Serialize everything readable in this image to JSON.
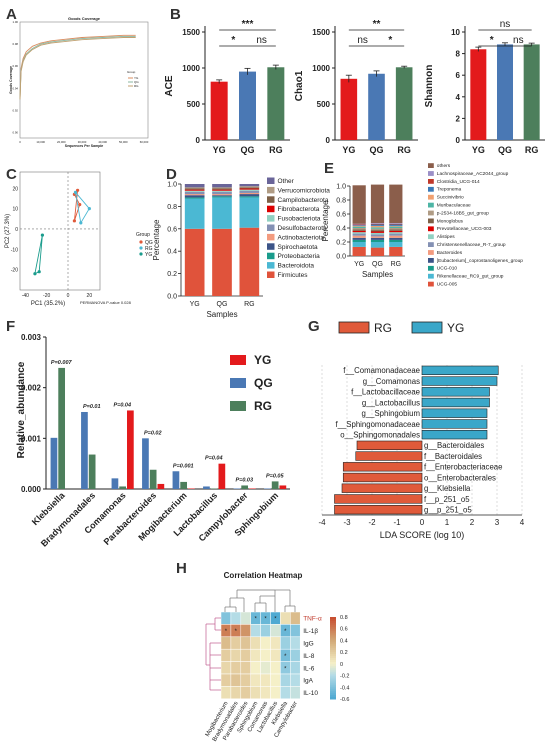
{
  "panels": {
    "A": "A",
    "B": "B",
    "C": "C",
    "D": "D",
    "E": "E",
    "F": "F",
    "G": "G",
    "H": "H"
  },
  "colors": {
    "YG": "#e31a1c",
    "QG": "#4a78b4",
    "RG": "#4d7f5c",
    "RG_lda": "#e05a3a",
    "YG_lda": "#3aa7c9"
  },
  "chart_data": [
    {
      "id": "A",
      "type": "line",
      "title": "Goods Coverage",
      "xlabel": "Sequences Per Sample",
      "ylabel": "Goods Coverage",
      "legend_title": "Group",
      "legend": [
        "YG",
        "QG",
        "RG"
      ],
      "x_ticks": [
        "0",
        "10,000",
        "20,000",
        "30,000",
        "40,000",
        "50,000",
        "60,000"
      ],
      "y_ticks": [
        "0.90",
        "0.92",
        "0.94",
        "0.96",
        "0.98",
        "1.00"
      ],
      "ylim": [
        0.895,
        1.0
      ],
      "series": [
        {
          "name": "YG",
          "x": [
            0,
            500,
            1500,
            3000,
            6000,
            10000,
            15000,
            20000,
            30000,
            40000,
            50000,
            56000
          ],
          "y": [
            0.93,
            0.958,
            0.967,
            0.973,
            0.978,
            0.981,
            0.983,
            0.984,
            0.986,
            0.987,
            0.988,
            0.988
          ]
        },
        {
          "name": "QG",
          "x": [
            0,
            500,
            1500,
            3000,
            6000,
            10000,
            15000,
            20000,
            30000,
            40000,
            50000,
            56000
          ],
          "y": [
            0.93,
            0.956,
            0.965,
            0.971,
            0.976,
            0.98,
            0.982,
            0.983,
            0.985,
            0.986,
            0.987,
            0.987
          ]
        },
        {
          "name": "RG",
          "x": [
            0,
            500,
            1500,
            3000,
            6000,
            10000,
            15000,
            20000,
            30000,
            40000,
            50000,
            56000
          ],
          "y": [
            0.93,
            0.955,
            0.964,
            0.97,
            0.975,
            0.979,
            0.981,
            0.982,
            0.984,
            0.985,
            0.986,
            0.986
          ]
        }
      ]
    },
    {
      "id": "B1",
      "type": "bar",
      "ylabel": "ACE",
      "categories": [
        "YG",
        "QG",
        "RG"
      ],
      "values": [
        810,
        950,
        1010
      ],
      "errors": [
        25,
        45,
        30
      ],
      "ylim": [
        0,
        1500
      ],
      "y_ticks": [
        "0",
        "500",
        "1000",
        "1500"
      ],
      "sig": [
        {
          "from": 0,
          "to": 2,
          "label": "***",
          "level": 1
        },
        {
          "from": 0,
          "to": 1,
          "label": "*",
          "level": 0
        },
        {
          "from": 1,
          "to": 2,
          "label": "ns",
          "level": 0
        }
      ]
    },
    {
      "id": "B2",
      "type": "bar",
      "ylabel": "Chao1",
      "categories": [
        "YG",
        "QG",
        "RG"
      ],
      "values": [
        850,
        920,
        1010
      ],
      "errors": [
        50,
        40,
        15
      ],
      "ylim": [
        0,
        1500
      ],
      "y_ticks": [
        "0",
        "500",
        "1000",
        "1500"
      ],
      "sig": [
        {
          "from": 0,
          "to": 2,
          "label": "**",
          "level": 1
        },
        {
          "from": 0,
          "to": 1,
          "label": "ns",
          "level": 0
        },
        {
          "from": 1,
          "to": 2,
          "label": "*",
          "level": 0
        }
      ]
    },
    {
      "id": "B3",
      "type": "bar",
      "ylabel": "Shannon",
      "categories": [
        "YG",
        "QG",
        "RG"
      ],
      "values": [
        8.4,
        8.85,
        8.85
      ],
      "errors": [
        0.2,
        0.15,
        0.12
      ],
      "ylim": [
        0,
        10
      ],
      "y_ticks": [
        "0",
        "2",
        "4",
        "6",
        "8",
        "10"
      ],
      "sig": [
        {
          "from": 0,
          "to": 2,
          "label": "ns",
          "level": 1
        },
        {
          "from": 0,
          "to": 1,
          "label": "*",
          "level": 0
        },
        {
          "from": 1,
          "to": 2,
          "label": "ns",
          "level": 0
        }
      ]
    },
    {
      "id": "C",
      "type": "scatter",
      "xlabel": "PC1 (35.2%)",
      "ylabel": "PC2 (27.3%)",
      "note": "PERMANOVA P-value 0.028",
      "legend_title": "Group",
      "legend": [
        "QG",
        "RG",
        "YG"
      ],
      "xlim": [
        -45,
        30
      ],
      "ylim": [
        -30,
        28
      ],
      "x_ticks": [
        "-40",
        "-20",
        "0",
        "20"
      ],
      "y_ticks": [
        "-20",
        "-10",
        "0",
        "10",
        "20"
      ],
      "series": [
        {
          "name": "QG",
          "points": [
            [
              6,
              17
            ],
            [
              11,
              12
            ],
            [
              6,
              4
            ],
            [
              9,
              19
            ]
          ]
        },
        {
          "name": "RG",
          "points": [
            [
              7,
              18
            ],
            [
              20,
              10
            ],
            [
              12,
              3
            ]
          ]
        },
        {
          "name": "YG",
          "points": [
            [
              -31,
              -22
            ],
            [
              -24,
              -3
            ],
            [
              -27,
              -21
            ]
          ]
        }
      ]
    },
    {
      "id": "D",
      "type": "bar",
      "stacked": true,
      "xlabel": "Samples",
      "ylabel": "Percentage",
      "categories": [
        "YG",
        "QG",
        "RG"
      ],
      "y_ticks": [
        "0.0",
        "0.2",
        "0.4",
        "0.6",
        "0.8",
        "1.0"
      ],
      "series": [
        {
          "name": "Firmicutes",
          "color": "#e0533b",
          "values": [
            0.6,
            0.6,
            0.61
          ]
        },
        {
          "name": "Bacteroidota",
          "color": "#4bb8d3",
          "values": [
            0.27,
            0.28,
            0.27
          ]
        },
        {
          "name": "Proteobacteria",
          "color": "#1a9c8c",
          "values": [
            0.01,
            0.01,
            0.01
          ]
        },
        {
          "name": "Spirochaetota",
          "color": "#3c5488",
          "values": [
            0.02,
            0.01,
            0.02
          ]
        },
        {
          "name": "Actinobacteriota",
          "color": "#f39b7f",
          "values": [
            0.01,
            0.01,
            0.01
          ]
        },
        {
          "name": "Desulfobacterota",
          "color": "#8491b4",
          "values": [
            0.02,
            0.02,
            0.02
          ]
        },
        {
          "name": "Fusobacteriota",
          "color": "#91d1c2",
          "values": [
            0.01,
            0.01,
            0.01
          ]
        },
        {
          "name": "Fibrobacterota",
          "color": "#dc0000",
          "values": [
            0.01,
            0.01,
            0.01
          ]
        },
        {
          "name": "Campilobacterota",
          "color": "#7e6148",
          "values": [
            0.01,
            0.01,
            0.01
          ]
        },
        {
          "name": "Verrucomicrobiota",
          "color": "#b09c85",
          "values": [
            0.01,
            0.01,
            0.01
          ]
        },
        {
          "name": "Other",
          "color": "#6a6599",
          "values": [
            0.03,
            0.03,
            0.02
          ]
        }
      ]
    },
    {
      "id": "E",
      "type": "bar",
      "stacked": true,
      "xlabel": "Samples",
      "ylabel": "Percentage",
      "categories": [
        "YG",
        "QG",
        "RG"
      ],
      "y_ticks": [
        "0.0",
        "0.2",
        "0.4",
        "0.6",
        "0.8",
        "1.0"
      ],
      "series": [
        {
          "name": "UCG-005",
          "color": "#e0533b",
          "values": [
            0.13,
            0.12,
            0.13
          ]
        },
        {
          "name": "Rikenellaceae_RC9_gut_group",
          "color": "#4bb8d3",
          "values": [
            0.07,
            0.08,
            0.07
          ]
        },
        {
          "name": "UCG-010",
          "color": "#1a9c8c",
          "values": [
            0.03,
            0.03,
            0.03
          ]
        },
        {
          "name": "[Eubacterium]_coprostanoligenes_group",
          "color": "#3c5488",
          "values": [
            0.03,
            0.03,
            0.03
          ]
        },
        {
          "name": "Bacteroides",
          "color": "#f39b7f",
          "values": [
            0.03,
            0.02,
            0.03
          ]
        },
        {
          "name": "Christensenellaceae_R-7_group",
          "color": "#8491b4",
          "values": [
            0.03,
            0.03,
            0.03
          ]
        },
        {
          "name": "Alistipes",
          "color": "#91d1c2",
          "values": [
            0.02,
            0.02,
            0.02
          ]
        },
        {
          "name": "Prevotellaceae_UCG-003",
          "color": "#dc0000",
          "values": [
            0.02,
            0.02,
            0.02
          ]
        },
        {
          "name": "Monoglobus",
          "color": "#7e6148",
          "values": [
            0.02,
            0.02,
            0.02
          ]
        },
        {
          "name": "p-2534-18B5_gut_group",
          "color": "#b09c85",
          "values": [
            0.02,
            0.02,
            0.02
          ]
        },
        {
          "name": "Muribaculaceae",
          "color": "#4db5a5",
          "values": [
            0.02,
            0.02,
            0.02
          ]
        },
        {
          "name": "Succinivibrio",
          "color": "#f0a070",
          "values": [
            0.01,
            0.02,
            0.01
          ]
        },
        {
          "name": "Treponema",
          "color": "#3a7ab8",
          "values": [
            0.01,
            0.02,
            0.02
          ]
        },
        {
          "name": "Clostridia_UCG-014",
          "color": "#c0392b",
          "values": [
            0.01,
            0.01,
            0.01
          ]
        },
        {
          "name": "Lachnospiraceae_AC2044_group",
          "color": "#9b8fc7",
          "values": [
            0.01,
            0.01,
            0.01
          ]
        },
        {
          "name": "others",
          "color": "#8b5e4b",
          "values": [
            0.55,
            0.55,
            0.55
          ]
        }
      ]
    },
    {
      "id": "F",
      "type": "bar",
      "ylabel": "Relative_abundance",
      "legend": [
        "YG",
        "QG",
        "RG"
      ],
      "categories": [
        "Klebsiella",
        "Bradymonadales",
        "Comamonas",
        "Parabacteroides",
        "Mogibacterium",
        "Lactobacillus",
        "Campylobacter",
        "Sphingobium"
      ],
      "ylim": [
        0,
        0.003
      ],
      "y_ticks": [
        "0.000",
        "0.001",
        "0.002",
        "0.003"
      ],
      "pvalues": [
        "P=0.007",
        "P=0.01",
        "P=0.04",
        "P=0.02",
        "P=0.001",
        "P=0.04",
        "P=0.03",
        "P=0.05"
      ],
      "series": [
        {
          "name": "YG",
          "values": [
            0.0,
            0.0,
            0.00155,
            0.0001,
            1e-05,
            0.0005,
            1e-05,
            7e-05
          ]
        },
        {
          "name": "QG",
          "values": [
            0.00101,
            0.00152,
            0.00021,
            0.001,
            0.00035,
            5e-05,
            1e-05,
            1e-05
          ]
        },
        {
          "name": "RG",
          "values": [
            0.00239,
            0.00068,
            5e-05,
            0.00038,
            0.00014,
            1e-05,
            7e-05,
            0.00015
          ]
        }
      ],
      "errors": {
        "YG": [
          0,
          0,
          2e-05,
          2e-05,
          0,
          2e-05,
          0,
          2e-05
        ],
        "QG": [
          0,
          0,
          0,
          0,
          0,
          0,
          0,
          0
        ],
        "RG": [
          0,
          0,
          0,
          0,
          0,
          0,
          0,
          0
        ]
      }
    },
    {
      "id": "G",
      "type": "bar",
      "orientation": "horizontal",
      "xlabel": "LDA SCORE (log 10)",
      "legend": [
        "RG",
        "YG"
      ],
      "xlim": [
        -4,
        4
      ],
      "x_ticks": [
        "-4",
        "-3",
        "-2",
        "-1",
        "0",
        "1",
        "2",
        "3",
        "4"
      ],
      "items": [
        {
          "label": "f__Comamonadaceae",
          "value": 3.05,
          "group": "YG"
        },
        {
          "label": "g__Comamonas",
          "value": 3.0,
          "group": "YG"
        },
        {
          "label": "f__Lactobacillaceae",
          "value": 2.7,
          "group": "YG"
        },
        {
          "label": "g__Lactobacillus",
          "value": 2.7,
          "group": "YG"
        },
        {
          "label": "g__Sphingobium",
          "value": 2.6,
          "group": "YG"
        },
        {
          "label": "f__Sphingomonadaceae",
          "value": 2.6,
          "group": "YG"
        },
        {
          "label": "o__Sphingomonadales",
          "value": 2.6,
          "group": "YG"
        },
        {
          "label": "g__Bacteroidales",
          "value": -2.6,
          "group": "RG"
        },
        {
          "label": "f__Bacteroidales",
          "value": -2.65,
          "group": "RG"
        },
        {
          "label": "f__Enterobacteriaceae",
          "value": -3.15,
          "group": "RG"
        },
        {
          "label": "o__Enterobacterales",
          "value": -3.15,
          "group": "RG"
        },
        {
          "label": "g__Klebsiella",
          "value": -3.2,
          "group": "RG"
        },
        {
          "label": "f__p_251_o5",
          "value": -3.5,
          "group": "RG"
        },
        {
          "label": "g__p_251_o5",
          "value": -3.5,
          "group": "RG"
        }
      ]
    },
    {
      "id": "H",
      "type": "heatmap",
      "title": "Correlation Heatmap",
      "columns": [
        "Mogibacterium",
        "Bradymonadales",
        "Parabacteroides",
        "Sphingobium",
        "Comamonas",
        "Lactobacillus",
        "Klebsiella",
        "Campylobacter"
      ],
      "rows": [
        "TNF-α",
        "IL-1β",
        "IgG",
        "IL-8",
        "IL-6",
        "IgA",
        "IL-10"
      ],
      "colorbar_ticks": [
        "0.8",
        "0.6",
        "0.4",
        "0.2",
        "0",
        "-0.2",
        "-0.4",
        "-0.6"
      ],
      "vmin": -0.6,
      "vmax": 0.8,
      "values": [
        [
          -0.4,
          -0.2,
          -0.1,
          -0.5,
          -0.5,
          -0.6,
          0.1,
          0.3
        ],
        [
          0.6,
          0.6,
          0.5,
          -0.2,
          -0.3,
          -0.1,
          -0.5,
          -0.4
        ],
        [
          0.3,
          0.2,
          0.25,
          0.1,
          0.0,
          0.05,
          -0.3,
          -0.2
        ],
        [
          0.2,
          0.15,
          0.2,
          0.05,
          0.0,
          0.05,
          -0.45,
          -0.3
        ],
        [
          0.15,
          0.2,
          0.2,
          0.0,
          -0.05,
          0.0,
          -0.35,
          -0.25
        ],
        [
          0.2,
          0.25,
          0.2,
          0.05,
          0.05,
          0.0,
          -0.25,
          -0.2
        ],
        [
          0.1,
          0.15,
          0.2,
          0.1,
          0.05,
          0.0,
          -0.2,
          -0.15
        ]
      ],
      "stars": [
        [
          0,
          3
        ],
        [
          0,
          4
        ],
        [
          0,
          5
        ],
        [
          1,
          0
        ],
        [
          1,
          1
        ],
        [
          1,
          6
        ],
        [
          3,
          6
        ],
        [
          4,
          6
        ]
      ]
    }
  ]
}
